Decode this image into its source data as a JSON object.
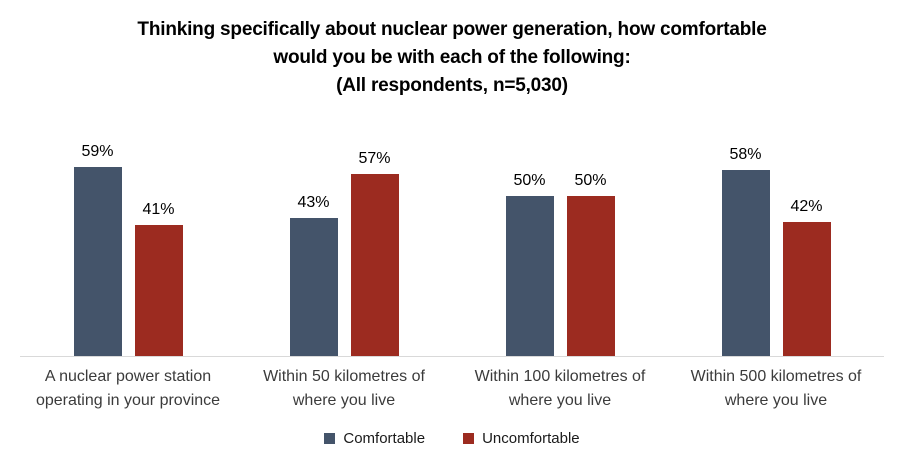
{
  "chart_data": {
    "type": "bar",
    "title": "Thinking specifically about nuclear power generation, how comfortable would you be with each of the following: (All respondents, n=5,030)",
    "title_lines": [
      "Thinking specifically about nuclear power generation, how comfortable",
      "would you be with each of the following:",
      "(All respondents, n=5,030)"
    ],
    "categories": [
      "A nuclear power station operating in your province",
      "Within 50 kilometres of where you live",
      "Within 100 kilometres of where you live",
      "Within 500 kilometres of where you live"
    ],
    "category_lines": [
      [
        "A nuclear power station",
        "operating in your province"
      ],
      [
        "Within 50 kilometres of",
        "where you live"
      ],
      [
        "Within 100 kilometres of",
        "where you live"
      ],
      [
        "Within 500 kilometres of",
        "where you live"
      ]
    ],
    "series": [
      {
        "name": "Comfortable",
        "color": "#44546A",
        "values": [
          59,
          43,
          50,
          58
        ]
      },
      {
        "name": "Uncomfortable",
        "color": "#9C2B20",
        "values": [
          41,
          57,
          50,
          42
        ]
      }
    ],
    "value_suffix": "%",
    "ylim": [
      0,
      100
    ],
    "grid": false,
    "y_axis_shown": false,
    "legend_position": "bottom",
    "axis_line_color": "#D9D9D9"
  }
}
